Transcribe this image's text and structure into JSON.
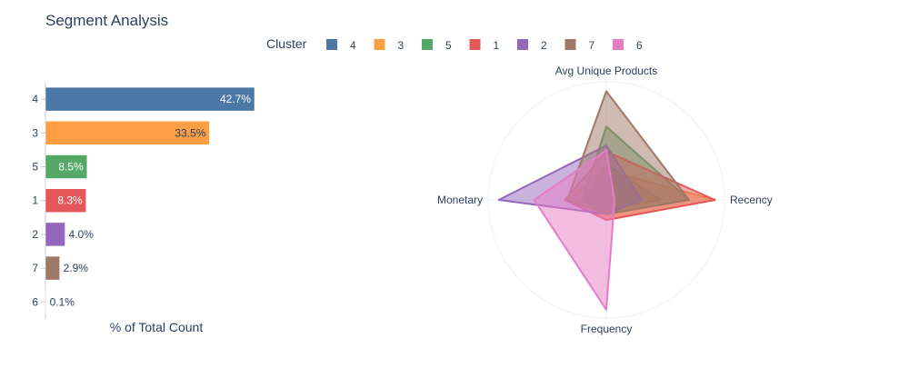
{
  "title": "Segment Analysis",
  "legend": {
    "title": "Cluster",
    "items": [
      {
        "label": "4",
        "color": "#4c78a8"
      },
      {
        "label": "3",
        "color": "#ff9f43"
      },
      {
        "label": "5",
        "color": "#54a868"
      },
      {
        "label": "1",
        "color": "#e4575b"
      },
      {
        "label": "2",
        "color": "#9467bd"
      },
      {
        "label": "7",
        "color": "#a07866"
      },
      {
        "label": "6",
        "color": "#e77cc6"
      }
    ]
  },
  "chart_data": [
    {
      "type": "bar",
      "orientation": "horizontal",
      "xlabel": "% of Total Count",
      "categories": [
        "4",
        "3",
        "5",
        "1",
        "2",
        "7",
        "6"
      ],
      "values": [
        42.7,
        33.5,
        8.5,
        8.3,
        4.0,
        2.9,
        0.1
      ],
      "labels": [
        "42.7%",
        "33.5%",
        "8.5%",
        "8.3%",
        "4.0%",
        "2.9%",
        "0.1%"
      ],
      "colors": [
        "#4c78a8",
        "#ff9f43",
        "#54a868",
        "#e4575b",
        "#9467bd",
        "#a07866",
        "#e77cc6"
      ],
      "xlim": [
        0,
        45
      ]
    },
    {
      "type": "radar",
      "axes": [
        "Avg Unique Products",
        "Recency",
        "Frequency",
        "Monetary"
      ],
      "range": [
        0,
        1
      ],
      "series": [
        {
          "name": "4",
          "color": "#4c78a8",
          "values": [
            0.3,
            0.46,
            0.08,
            0.18
          ]
        },
        {
          "name": "3",
          "color": "#ff9f43",
          "values": [
            0.25,
            0.92,
            0.17,
            0.33
          ]
        },
        {
          "name": "5",
          "color": "#54a868",
          "values": [
            0.62,
            0.7,
            0.12,
            0.2
          ]
        },
        {
          "name": "1",
          "color": "#e4575b",
          "values": [
            0.41,
            0.92,
            0.17,
            0.35
          ]
        },
        {
          "name": "2",
          "color": "#9467bd",
          "values": [
            0.46,
            0.3,
            0.12,
            0.91
          ]
        },
        {
          "name": "7",
          "color": "#a07866",
          "values": [
            0.92,
            0.7,
            0.12,
            0.33
          ]
        },
        {
          "name": "6",
          "color": "#e77cc6",
          "values": [
            0.42,
            0.07,
            0.93,
            0.61
          ]
        }
      ]
    }
  ]
}
